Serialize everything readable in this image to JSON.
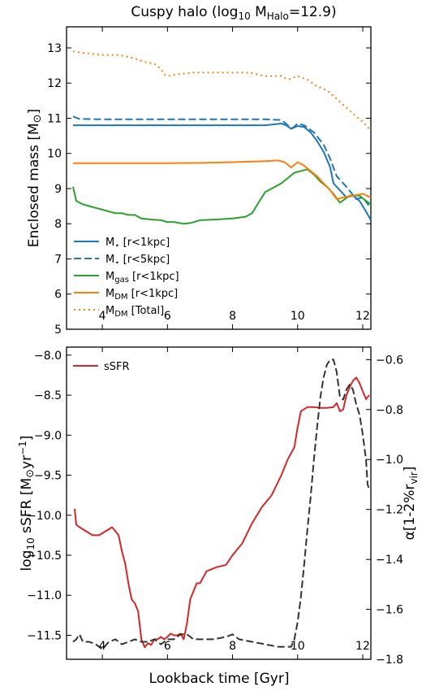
{
  "chart_data": [
    {
      "type": "line",
      "title": "Cuspy halo (log10 M_Halo=12.9)",
      "title_parts": {
        "pre": "Cuspy halo (log",
        "sub1": "10",
        "mid": " M",
        "sub2": "Halo",
        "post": "=12.9)"
      },
      "ylabel": "Enclosed mass [M⊙]",
      "ylabel_parts": {
        "pre": "Enclosed mass [M",
        "sym": "⊙",
        "post": "]"
      },
      "xlim": [
        2.9,
        12.25
      ],
      "ylim": [
        5,
        13.6
      ],
      "xticks": [
        4,
        6,
        8,
        10,
        12
      ],
      "yticks": [
        5,
        6,
        7,
        8,
        9,
        10,
        11,
        12,
        13
      ],
      "grid": false,
      "legend_position": "lower-left",
      "series": [
        {
          "name": "M⋆ [r<1kpc]",
          "legend": {
            "main": "M",
            "sub": "⋆",
            "tail": " [r<1kpc]"
          },
          "color": "#1f77b4",
          "dash": "solid",
          "x": [
            3.1,
            4,
            5,
            6,
            7,
            8,
            9,
            9.5,
            9.65,
            9.8,
            10,
            10.2,
            10.4,
            10.6,
            10.8,
            11.0,
            11.1,
            11.3,
            11.5,
            11.7,
            11.9,
            12.1,
            12.25
          ],
          "y": [
            10.8,
            10.8,
            10.8,
            10.8,
            10.8,
            10.8,
            10.8,
            10.85,
            10.8,
            10.7,
            10.78,
            10.75,
            10.6,
            10.35,
            10.05,
            9.6,
            9.15,
            8.95,
            8.75,
            8.8,
            8.65,
            8.35,
            8.1
          ]
        },
        {
          "name": "M⋆ [r<5kpc]",
          "legend": {
            "main": "M",
            "sub": "⋆",
            "tail": " [r<5kpc]"
          },
          "color": "#1f77b4",
          "dash": "dashed",
          "x": [
            3.1,
            3.3,
            4,
            5,
            6,
            7,
            8,
            9,
            9.5,
            9.7,
            9.85,
            10,
            10.2,
            10.5,
            10.8,
            11.0,
            11.2,
            11.5,
            11.8,
            12.0,
            12.2
          ],
          "y": [
            11.05,
            10.98,
            10.97,
            10.97,
            10.97,
            10.97,
            10.97,
            10.97,
            10.95,
            10.8,
            10.72,
            10.85,
            10.8,
            10.6,
            10.25,
            9.85,
            9.35,
            9.05,
            8.7,
            8.75,
            8.5
          ]
        },
        {
          "name": "Mgas [r<1kpc]",
          "legend": {
            "main": "M",
            "sub": "gas",
            "tail": " [r<1kpc]"
          },
          "color": "#2ca02c",
          "dash": "solid",
          "x": [
            3.1,
            3.2,
            3.4,
            3.6,
            3.8,
            4.0,
            4.2,
            4.4,
            4.6,
            4.8,
            5.0,
            5.2,
            5.5,
            5.8,
            6.0,
            6.2,
            6.5,
            6.7,
            7.0,
            7.5,
            8.0,
            8.4,
            8.6,
            8.8,
            9.0,
            9.2,
            9.5,
            9.7,
            9.9,
            10.1,
            10.3,
            10.5,
            10.7,
            10.9,
            11.1,
            11.3,
            11.6,
            11.9,
            12.1,
            12.25
          ],
          "y": [
            9.05,
            8.65,
            8.55,
            8.5,
            8.45,
            8.4,
            8.35,
            8.3,
            8.3,
            8.25,
            8.25,
            8.15,
            8.12,
            8.1,
            8.05,
            8.05,
            8.0,
            8.02,
            8.1,
            8.12,
            8.15,
            8.2,
            8.3,
            8.6,
            8.9,
            9.0,
            9.15,
            9.3,
            9.45,
            9.5,
            9.55,
            9.4,
            9.2,
            9.05,
            8.85,
            8.6,
            8.8,
            8.8,
            8.65,
            8.55
          ]
        },
        {
          "name": "MDM [r<1kpc]",
          "legend": {
            "main": "M",
            "sub": "DM",
            "tail": " [r<1kpc]"
          },
          "color": "#ff7f0e",
          "dash": "solid",
          "x": [
            3.1,
            4,
            5,
            6,
            7,
            8,
            9,
            9.4,
            9.6,
            9.8,
            10.0,
            10.2,
            10.4,
            10.6,
            10.8,
            11.0,
            11.2,
            11.4,
            11.7,
            12.0,
            12.25
          ],
          "y": [
            9.72,
            9.72,
            9.72,
            9.72,
            9.73,
            9.75,
            9.78,
            9.8,
            9.75,
            9.6,
            9.75,
            9.65,
            9.5,
            9.35,
            9.15,
            8.95,
            8.7,
            8.75,
            8.8,
            8.85,
            8.75
          ]
        },
        {
          "name": "MDM [Total]",
          "legend": {
            "main": "M",
            "sub": "DM",
            "tail": " [Total]"
          },
          "color": "#ff7f0e",
          "dash": "dotted",
          "x": [
            3.1,
            3.5,
            4.0,
            4.5,
            5.0,
            5.3,
            5.6,
            5.8,
            5.9,
            6.0,
            6.3,
            6.8,
            7.5,
            8.0,
            8.5,
            9.0,
            9.5,
            9.7,
            10.0,
            10.3,
            10.6,
            10.9,
            11.2,
            11.5,
            11.8,
            12.0,
            12.25
          ],
          "y": [
            12.9,
            12.85,
            12.8,
            12.8,
            12.7,
            12.6,
            12.55,
            12.4,
            12.25,
            12.2,
            12.25,
            12.3,
            12.3,
            12.3,
            12.3,
            12.2,
            12.2,
            12.1,
            12.2,
            12.1,
            11.9,
            11.8,
            11.55,
            11.3,
            11.05,
            10.9,
            10.65
          ]
        }
      ]
    },
    {
      "type": "line",
      "xlabel": "Lookback time [Gyr]",
      "ylabel": "log10 sSFR [M⊙yr−1]",
      "ylabel_parts": {
        "pre": "log",
        "sub1": "10",
        "mid": " sSFR [M",
        "sym": "⊙",
        "unit": "yr",
        "sup": "−1",
        "post": "]"
      },
      "y2label": "α[1-2%rvir]",
      "y2label_parts": {
        "pre": "α[1-2%r",
        "sub": "vir",
        "post": "]"
      },
      "xlim": [
        2.9,
        12.25
      ],
      "ylim": [
        -11.8,
        -7.9
      ],
      "y2lim": [
        -1.8,
        -0.55
      ],
      "xticks": [
        4,
        6,
        8,
        10,
        12
      ],
      "yticks": [
        "-8.0",
        "-8.5",
        "-9.0",
        "-9.5",
        "-10.0",
        "-10.5",
        "-11.0",
        "-11.5"
      ],
      "y2ticks": [
        "-0.6",
        "-0.8",
        "-1.0",
        "-1.2",
        "-1.4",
        "-1.6",
        "-1.8"
      ],
      "grid": false,
      "legend_position": "top-left",
      "series": [
        {
          "name": "sSFR",
          "color": "#d62728",
          "dash": "solid",
          "axis": "left",
          "x": [
            3.15,
            3.2,
            3.3,
            3.5,
            3.7,
            3.9,
            4.1,
            4.3,
            4.5,
            4.6,
            4.7,
            4.8,
            4.9,
            5.0,
            5.1,
            5.2,
            5.3,
            5.4,
            5.5,
            5.6,
            5.7,
            5.8,
            5.9,
            6.0,
            6.1,
            6.2,
            6.3,
            6.4,
            6.5,
            6.6,
            6.7,
            6.8,
            6.9,
            7.0,
            7.2,
            7.5,
            7.8,
            8.0,
            8.3,
            8.6,
            8.9,
            9.2,
            9.5,
            9.7,
            9.9,
            10.0,
            10.1,
            10.3,
            10.5,
            10.7,
            10.9,
            11.1,
            11.2,
            11.3,
            11.4,
            11.5,
            11.6,
            11.7,
            11.8,
            11.9,
            12.0,
            12.1,
            12.2
          ],
          "y": [
            -9.92,
            -10.12,
            -10.15,
            -10.2,
            -10.25,
            -10.25,
            -10.2,
            -10.15,
            -10.25,
            -10.45,
            -10.6,
            -10.85,
            -11.05,
            -11.1,
            -11.2,
            -11.55,
            -11.65,
            -11.6,
            -11.62,
            -11.55,
            -11.55,
            -11.52,
            -11.55,
            -11.52,
            -11.48,
            -11.5,
            -11.5,
            -11.48,
            -11.55,
            -11.35,
            -11.05,
            -10.95,
            -10.85,
            -10.85,
            -10.7,
            -10.65,
            -10.62,
            -10.5,
            -10.35,
            -10.1,
            -9.9,
            -9.75,
            -9.5,
            -9.3,
            -9.15,
            -8.9,
            -8.7,
            -8.65,
            -8.65,
            -8.66,
            -8.66,
            -8.65,
            -8.6,
            -8.7,
            -8.68,
            -8.5,
            -8.4,
            -8.32,
            -8.28,
            -8.35,
            -8.45,
            -8.55,
            -8.5
          ]
        },
        {
          "name": "",
          "color": "#333333",
          "dash": "dashed",
          "axis": "right",
          "x": [
            3.1,
            3.2,
            3.3,
            3.4,
            3.6,
            3.8,
            4.0,
            4.2,
            4.4,
            4.6,
            4.8,
            5.0,
            5.2,
            5.4,
            5.6,
            5.8,
            6.0,
            6.2,
            6.4,
            6.6,
            6.8,
            7.0,
            7.4,
            7.8,
            8.0,
            8.2,
            8.6,
            9.0,
            9.4,
            9.8,
            9.9,
            10.0,
            10.1,
            10.2,
            10.3,
            10.4,
            10.5,
            10.6,
            10.7,
            10.8,
            10.9,
            11.0,
            11.1,
            11.2,
            11.3,
            11.4,
            11.5,
            11.6,
            11.7,
            11.8,
            11.9,
            12.0,
            12.1,
            12.15,
            12.2
          ],
          "y": [
            -1.73,
            -1.72,
            -1.7,
            -1.73,
            -1.73,
            -1.74,
            -1.76,
            -1.73,
            -1.72,
            -1.74,
            -1.73,
            -1.72,
            -1.73,
            -1.73,
            -1.72,
            -1.74,
            -1.72,
            -1.72,
            -1.7,
            -1.7,
            -1.72,
            -1.72,
            -1.72,
            -1.71,
            -1.7,
            -1.72,
            -1.73,
            -1.74,
            -1.75,
            -1.75,
            -1.72,
            -1.65,
            -1.55,
            -1.42,
            -1.28,
            -1.15,
            -1.0,
            -0.87,
            -0.75,
            -0.67,
            -0.62,
            -0.6,
            -0.6,
            -0.65,
            -0.75,
            -0.76,
            -0.72,
            -0.7,
            -0.72,
            -0.78,
            -0.82,
            -0.9,
            -1.0,
            -1.1,
            -1.12
          ]
        }
      ]
    }
  ]
}
